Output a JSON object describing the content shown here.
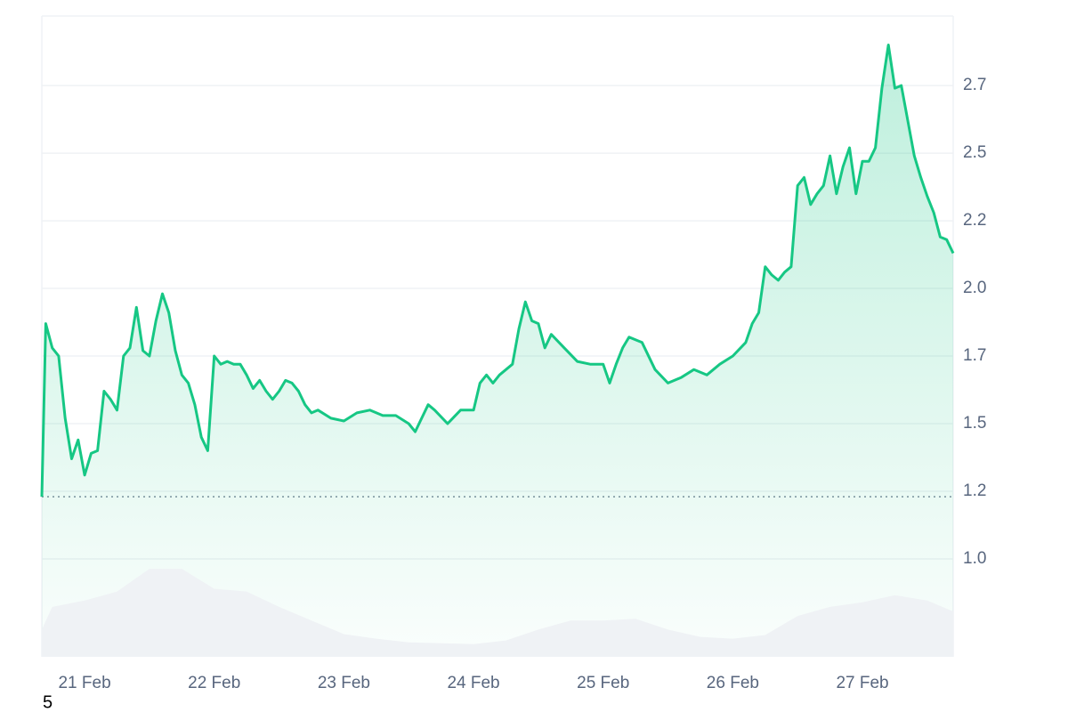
{
  "chart_data": {
    "type": "line",
    "xlim": [
      -0.33,
      6.7
    ],
    "xticks": [
      {
        "value": 0,
        "label": "21 Feb"
      },
      {
        "value": 1,
        "label": "22 Feb"
      },
      {
        "value": 2,
        "label": "23 Feb"
      },
      {
        "value": 3,
        "label": "24 Feb"
      },
      {
        "value": 4,
        "label": "25 Feb"
      },
      {
        "value": 5,
        "label": "26 Feb"
      },
      {
        "value": 6,
        "label": "27 Feb"
      }
    ],
    "ylim": [
      0.638,
      3.007
    ],
    "yticks": [
      {
        "value": 1.0,
        "label": "1.0"
      },
      {
        "value": 1.25,
        "label": "1.2"
      },
      1.5,
      {
        "value": 1.75,
        "label": "1.7"
      },
      {
        "value": 2.0,
        "label": "2.0"
      },
      {
        "value": 2.25,
        "label": "2.2"
      },
      2.5,
      {
        "value": 2.75,
        "label": "2.7"
      }
    ],
    "y2lim": [
      0,
      706
    ],
    "grid": true,
    "baseline": 1.23,
    "annotations": [
      "5"
    ],
    "series": [
      {
        "color": "#16c784",
        "x": [
          -0.33,
          -0.3,
          -0.25,
          -0.2,
          -0.15,
          -0.1,
          -0.05,
          0,
          0.05,
          0.1,
          0.15,
          0.2,
          0.25,
          0.3,
          0.35,
          0.4,
          0.45,
          0.5,
          0.55,
          0.6,
          0.65,
          0.7,
          0.75,
          0.8,
          0.85,
          0.9,
          0.95,
          1,
          1.05,
          1.1,
          1.15,
          1.2,
          1.25,
          1.3,
          1.35,
          1.4,
          1.45,
          1.5,
          1.55,
          1.6,
          1.65,
          1.7,
          1.75,
          1.8,
          1.9,
          2,
          2.1,
          2.2,
          2.3,
          2.4,
          2.5,
          2.55,
          2.6,
          2.65,
          2.7,
          2.8,
          2.9,
          3,
          3.05,
          3.1,
          3.15,
          3.2,
          3.3,
          3.35,
          3.4,
          3.45,
          3.5,
          3.55,
          3.6,
          3.7,
          3.8,
          3.9,
          4,
          4.05,
          4.1,
          4.15,
          4.2,
          4.3,
          4.4,
          4.5,
          4.6,
          4.7,
          4.8,
          4.9,
          5,
          5.1,
          5.15,
          5.2,
          5.25,
          5.3,
          5.35,
          5.4,
          5.45,
          5.5,
          5.55,
          5.6,
          5.65,
          5.7,
          5.75,
          5.8,
          5.85,
          5.9,
          5.95,
          6,
          6.05,
          6.1,
          6.15,
          6.2,
          6.25,
          6.3,
          6.35,
          6.4,
          6.45,
          6.5,
          6.55,
          6.6,
          6.65,
          6.7
        ],
        "values": [
          1.23,
          1.87,
          1.78,
          1.75,
          1.52,
          1.37,
          1.44,
          1.31,
          1.39,
          1.4,
          1.62,
          1.59,
          1.55,
          1.75,
          1.78,
          1.93,
          1.77,
          1.75,
          1.88,
          1.98,
          1.91,
          1.77,
          1.68,
          1.65,
          1.57,
          1.45,
          1.4,
          1.75,
          1.72,
          1.73,
          1.72,
          1.72,
          1.68,
          1.63,
          1.66,
          1.62,
          1.59,
          1.62,
          1.66,
          1.65,
          1.62,
          1.57,
          1.54,
          1.55,
          1.52,
          1.51,
          1.54,
          1.55,
          1.53,
          1.53,
          1.5,
          1.47,
          1.52,
          1.57,
          1.55,
          1.5,
          1.55,
          1.55,
          1.65,
          1.68,
          1.65,
          1.68,
          1.72,
          1.85,
          1.95,
          1.88,
          1.87,
          1.78,
          1.83,
          1.78,
          1.73,
          1.72,
          1.72,
          1.65,
          1.72,
          1.78,
          1.82,
          1.8,
          1.7,
          1.65,
          1.67,
          1.7,
          1.68,
          1.72,
          1.75,
          1.8,
          1.87,
          1.91,
          2.08,
          2.05,
          2.03,
          2.06,
          2.08,
          2.38,
          2.41,
          2.31,
          2.35,
          2.38,
          2.49,
          2.35,
          2.45,
          2.52,
          2.35,
          2.47,
          2.47,
          2.52,
          2.74,
          2.9,
          2.74,
          2.75,
          2.62,
          2.49,
          2.41,
          2.34,
          2.28,
          2.19,
          2.18,
          2.13
        ]
      },
      {
        "color": "#eff2f5",
        "axis": "y2",
        "x": [
          -0.33,
          -0.25,
          0,
          0.25,
          0.5,
          0.75,
          1,
          1.25,
          1.5,
          1.75,
          2,
          2.25,
          2.5,
          2.75,
          3,
          3.25,
          3.5,
          3.75,
          4,
          4.25,
          4.5,
          4.75,
          5,
          5.25,
          5.5,
          5.75,
          6,
          6.25,
          6.5,
          6.7
        ],
        "values": [
          30,
          55,
          62,
          72,
          97,
          97,
          75,
          72,
          55,
          40,
          25,
          20,
          16,
          15,
          14,
          18,
          30,
          40,
          40,
          42,
          30,
          22,
          20,
          24,
          45,
          55,
          60,
          68,
          62,
          50
        ]
      }
    ]
  }
}
